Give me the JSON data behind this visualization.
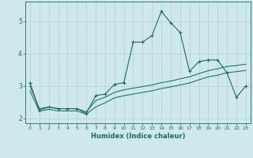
{
  "xlabel": "Humidex (Indice chaleur)",
  "background_color": "#cfe8ec",
  "grid_color": "#aed0d6",
  "line_color": "#1a6b60",
  "xlim": [
    -0.5,
    23.5
  ],
  "ylim": [
    1.85,
    5.6
  ],
  "yticks": [
    2,
    3,
    4,
    5
  ],
  "xticks": [
    0,
    1,
    2,
    3,
    4,
    5,
    6,
    7,
    8,
    9,
    10,
    11,
    12,
    13,
    14,
    15,
    16,
    17,
    18,
    19,
    20,
    21,
    22,
    23
  ],
  "series1_x": [
    0,
    1,
    2,
    3,
    4,
    5,
    6,
    7,
    8,
    9,
    10,
    11,
    12,
    13,
    14,
    15,
    16,
    17,
    18,
    19,
    20,
    21,
    22,
    23
  ],
  "series1_y": [
    3.1,
    2.25,
    2.35,
    2.3,
    2.3,
    2.3,
    2.15,
    2.7,
    2.75,
    3.05,
    3.1,
    4.35,
    4.35,
    4.55,
    5.3,
    4.95,
    4.65,
    3.45,
    3.75,
    3.8,
    3.8,
    3.4,
    2.65,
    3.0
  ],
  "series2_x": [
    0,
    1,
    2,
    3,
    4,
    5,
    6,
    7,
    8,
    9,
    10,
    11,
    12,
    13,
    14,
    15,
    16,
    17,
    18,
    19,
    20,
    21,
    22,
    23
  ],
  "series2_y": [
    3.0,
    2.3,
    2.35,
    2.3,
    2.3,
    2.3,
    2.2,
    2.55,
    2.65,
    2.8,
    2.88,
    2.93,
    2.98,
    3.03,
    3.1,
    3.15,
    3.22,
    3.28,
    3.38,
    3.47,
    3.53,
    3.6,
    3.63,
    3.67
  ],
  "series3_x": [
    0,
    1,
    2,
    3,
    4,
    5,
    6,
    7,
    8,
    9,
    10,
    11,
    12,
    13,
    14,
    15,
    16,
    17,
    18,
    19,
    20,
    21,
    22,
    23
  ],
  "series3_y": [
    2.85,
    2.22,
    2.28,
    2.23,
    2.23,
    2.23,
    2.13,
    2.35,
    2.48,
    2.63,
    2.7,
    2.75,
    2.8,
    2.85,
    2.92,
    2.97,
    3.03,
    3.09,
    3.19,
    3.28,
    3.33,
    3.41,
    3.44,
    3.48
  ]
}
